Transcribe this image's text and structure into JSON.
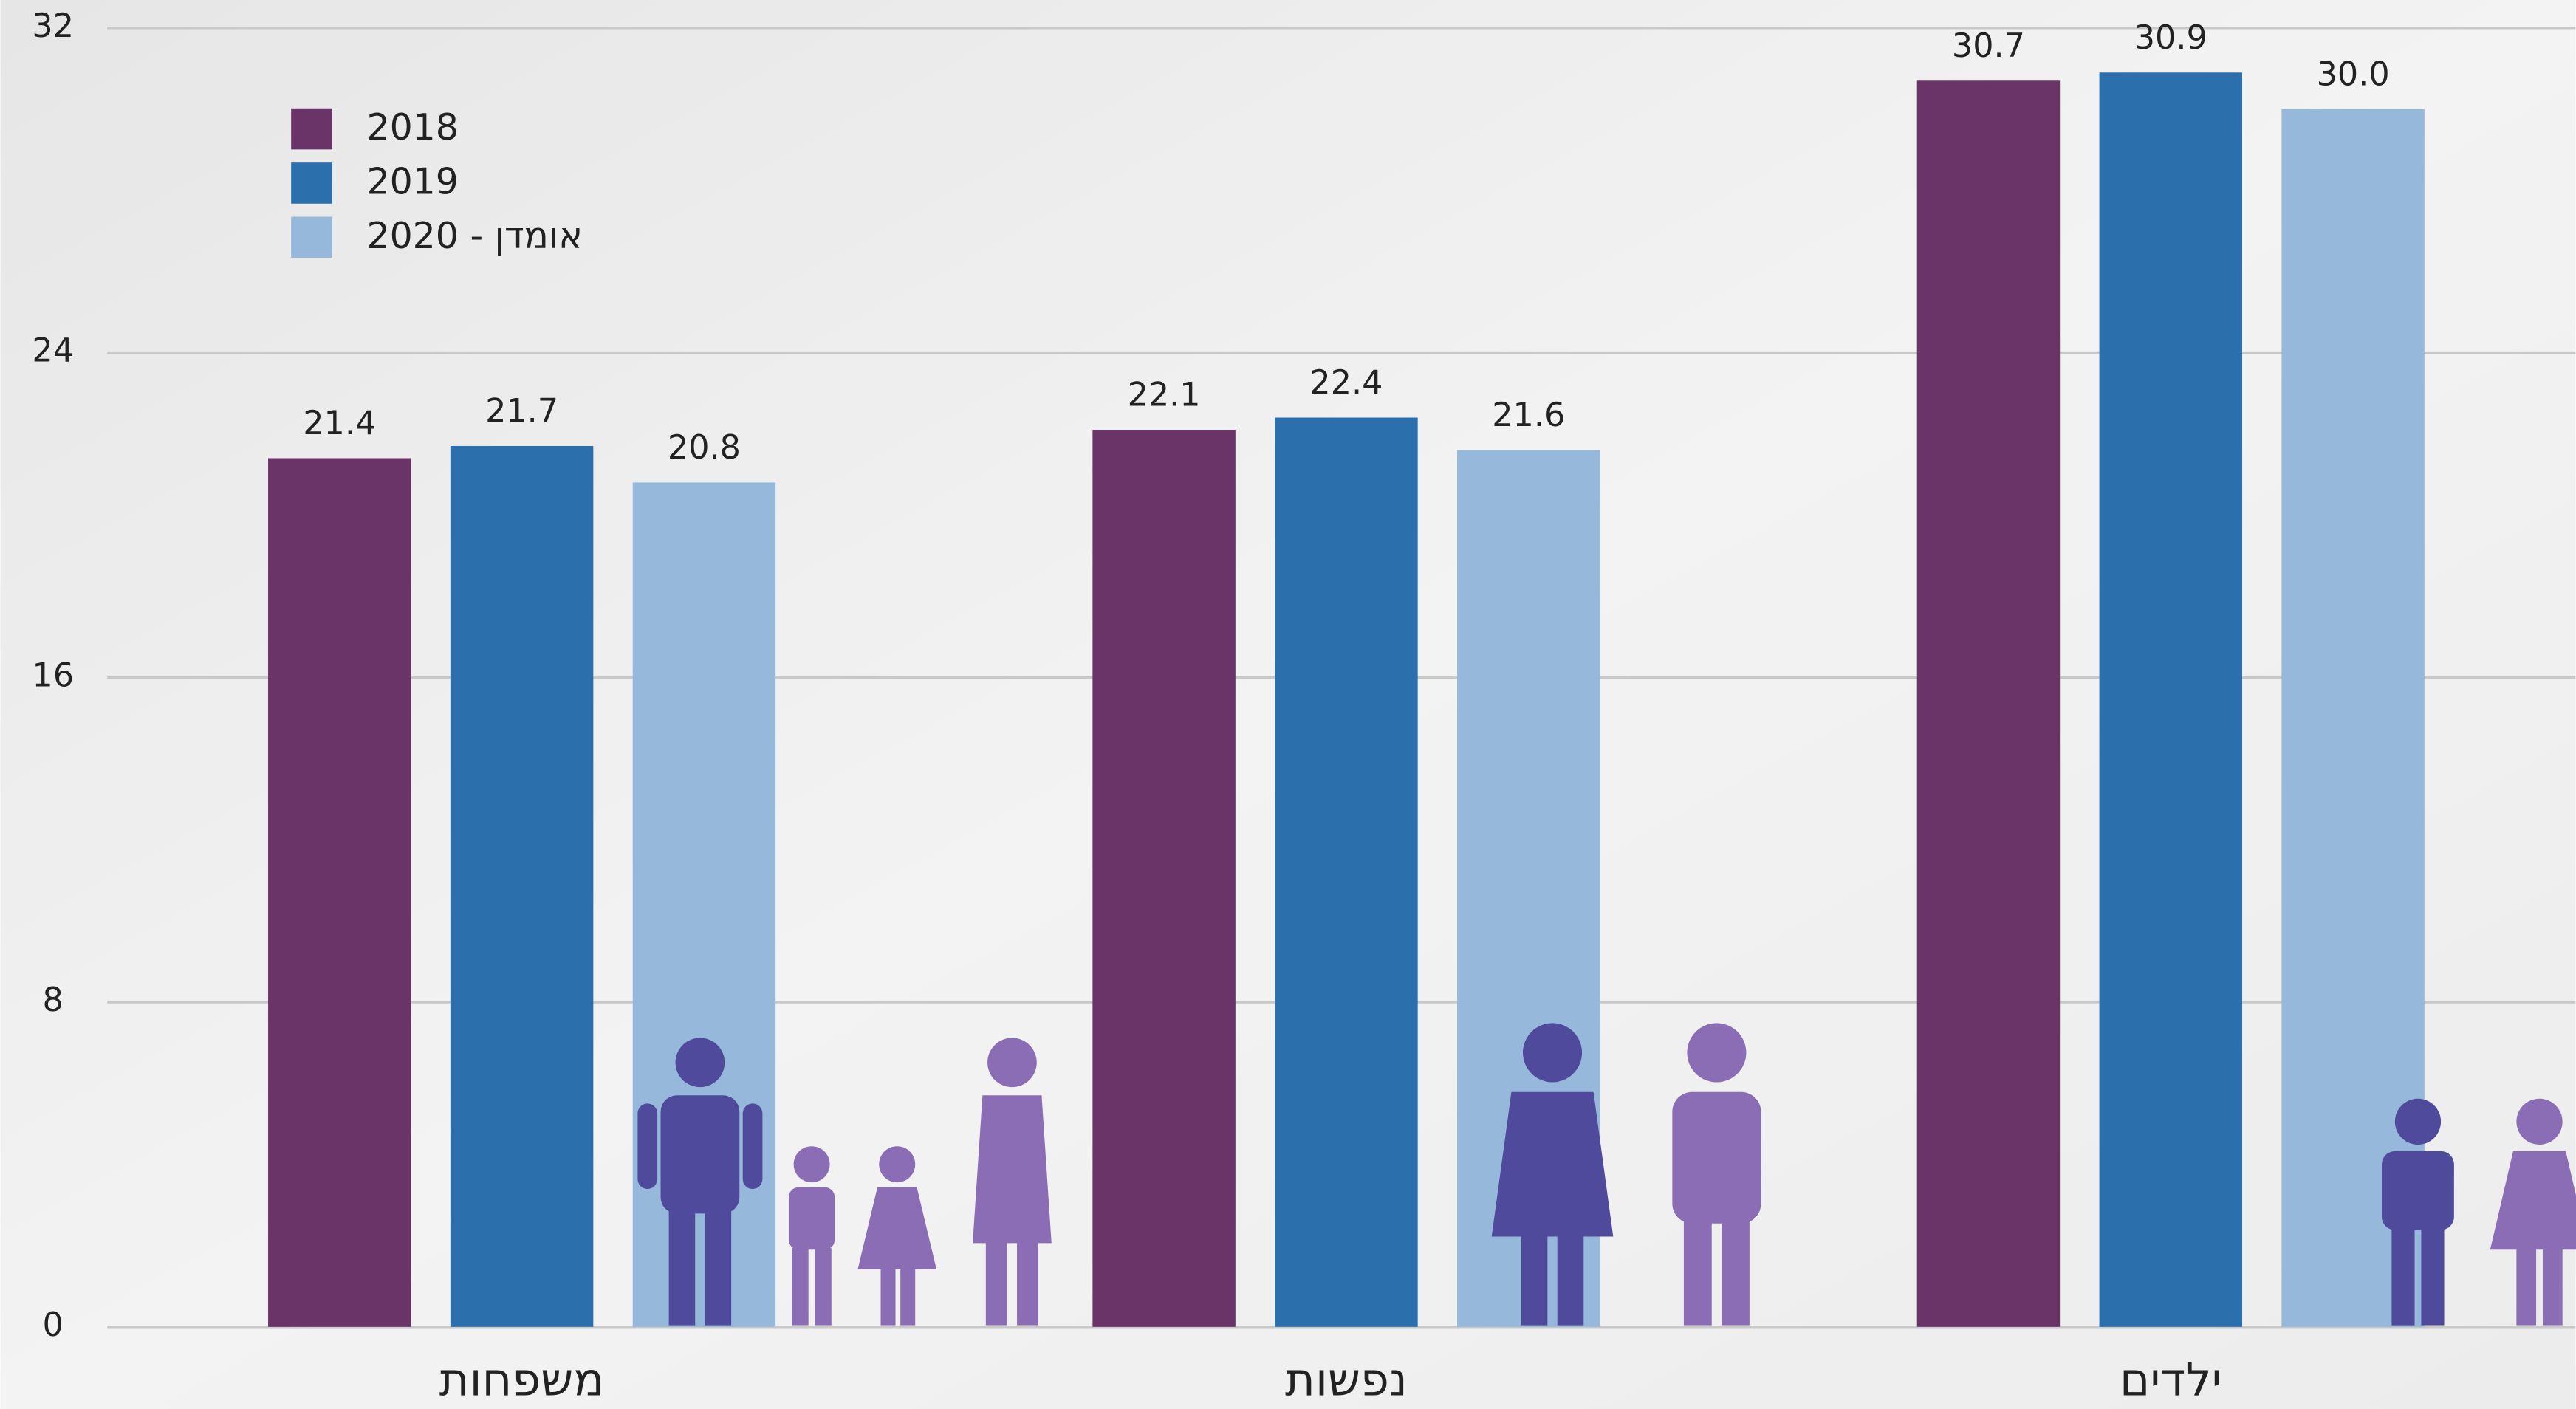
{
  "chart_data": {
    "type": "bar",
    "categories": [
      "משפחות",
      "נפשות",
      "ילדים"
    ],
    "series": [
      {
        "name": "2018",
        "color": "#6b3468",
        "values": [
          21.4,
          22.1,
          30.7
        ]
      },
      {
        "name": "2019",
        "color": "#2c6fad",
        "values": [
          21.7,
          22.4,
          30.9
        ]
      },
      {
        "name": "2020 - אומדן",
        "color": "#96b8db",
        "values": [
          20.8,
          21.6,
          30.0
        ],
        "value_labels": [
          "20.8",
          "21.6",
          "30.0"
        ]
      }
    ],
    "ylim": [
      0,
      32
    ],
    "yticks": [
      0,
      8,
      16,
      24,
      32
    ],
    "grid": true,
    "legend": "top-left"
  }
}
